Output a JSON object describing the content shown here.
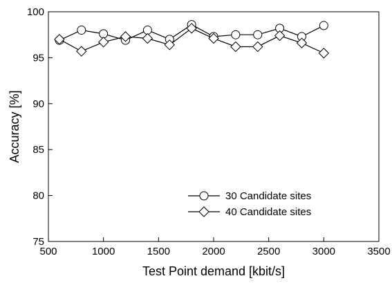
{
  "chart_data": {
    "type": "line",
    "title": "",
    "xlabel": "Test Point demand [kbit/s]",
    "ylabel": "Accuracy [%]",
    "xlim": [
      500,
      3500
    ],
    "ylim": [
      75,
      100
    ],
    "xticks": [
      500,
      1000,
      1500,
      2000,
      2500,
      3000,
      3500
    ],
    "yticks": [
      75,
      80,
      85,
      90,
      95,
      100
    ],
    "x": [
      600,
      800,
      1000,
      1200,
      1400,
      1600,
      1800,
      2000,
      2200,
      2400,
      2600,
      2800,
      3000
    ],
    "legend": "lower-right",
    "grid": false,
    "series": [
      {
        "name": "30 Candidate sites",
        "marker": "circle",
        "values": [
          96.9,
          98.0,
          97.6,
          96.9,
          98.0,
          97.0,
          98.6,
          97.3,
          97.5,
          97.5,
          98.2,
          97.3,
          98.5
        ]
      },
      {
        "name": "40 Candidate sites",
        "marker": "diamond",
        "values": [
          97.0,
          95.7,
          96.7,
          97.3,
          97.1,
          96.4,
          98.2,
          97.1,
          96.2,
          96.2,
          97.4,
          96.6,
          95.5
        ]
      }
    ]
  }
}
